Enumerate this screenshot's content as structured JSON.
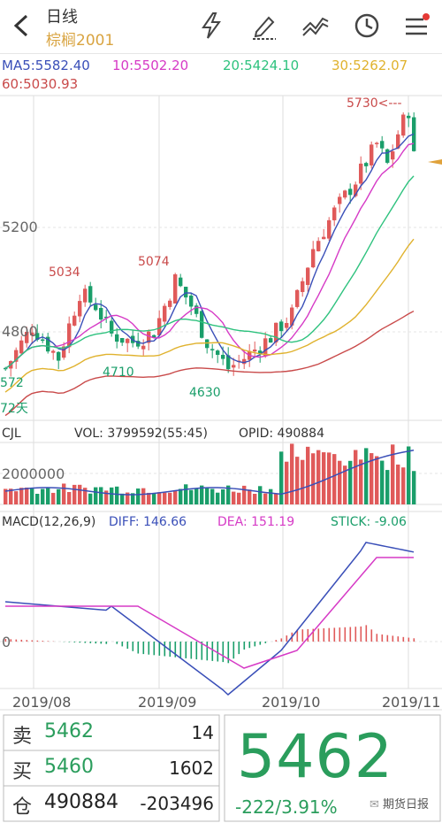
{
  "header": {
    "title": "日线",
    "symbol": "棕榈2001",
    "icons": [
      "back-icon",
      "lightning-icon",
      "draw-icon",
      "indicator-icon",
      "clock-icon",
      "menu-icon"
    ],
    "accent": "#d9a441"
  },
  "ma": {
    "ma5": "MA5:5582.40",
    "ma10": "10:5502.20",
    "ma20": "20:5424.10",
    "ma30": "30:5262.07",
    "ma60": "60:5030.93"
  },
  "colors": {
    "up": "#e05a5a",
    "down": "#1a9e6a",
    "ma5": "#3a4fb8",
    "ma10": "#d63ac6",
    "ma20": "#2ec27e",
    "ma30": "#e0b22e",
    "ma60": "#c94a4a"
  },
  "price_panel": {
    "y_labels": [
      "5200",
      "4800"
    ],
    "annotations": {
      "high": "5730<---",
      "p5034": "5034",
      "p5074": "5074",
      "p4710": "4710",
      "p4630": "4630",
      "left1": "572",
      "left2": "72天"
    }
  },
  "volume_panel": {
    "header": {
      "cjl": "CJL",
      "vol": "VOL: 3799592(55:45)",
      "opid": "OPID: 490884"
    },
    "y_label": "2000000"
  },
  "macd_panel": {
    "header": {
      "macd": "MACD(12,26,9)",
      "diff": "DIFF: 146.66",
      "dea": "DEA: 151.19",
      "stick": "STICK: -9.06"
    },
    "y_label": "0"
  },
  "x_axis": [
    "2019/08",
    "2019/09",
    "2019/10",
    "2019/11"
  ],
  "quote": {
    "sell_label": "卖",
    "sell_price": "5462",
    "sell_vol": "14",
    "buy_label": "买",
    "buy_price": "5460",
    "buy_vol": "1602",
    "oi_label": "仓",
    "oi_value": "490884",
    "oi_change": "-203496",
    "last": "5462",
    "change": "-222/3.91%"
  },
  "watermark": "期货日报"
}
